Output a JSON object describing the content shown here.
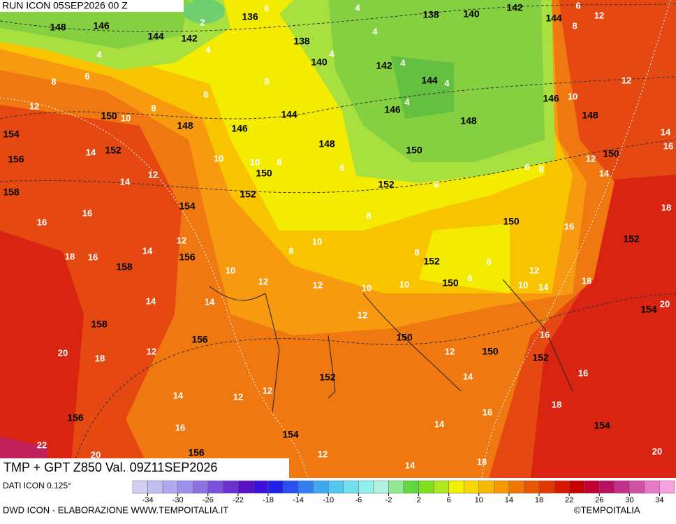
{
  "header": {
    "run": "RUN ICON 05SEP2026 00 Z"
  },
  "title": "TMP + GPT Z850 Val. 09Z11SEP2026",
  "source": "DATI ICON 0.125°",
  "footer": {
    "left": "DWD ICON - ELABORAZIONE WWW.TEMPOITALIA.IT",
    "right": "©TEMPOITALIA"
  },
  "legend": {
    "ticks": [
      -34,
      -30,
      -26,
      -22,
      -18,
      -14,
      -10,
      -6,
      -2,
      2,
      6,
      10,
      14,
      18,
      22,
      26,
      30,
      34
    ],
    "colors": [
      "#d0d0f4",
      "#c0c0f0",
      "#b0a8f0",
      "#9c90ec",
      "#8c70e4",
      "#7c50dc",
      "#6c30d0",
      "#5c10c4",
      "#3c10d8",
      "#2020e8",
      "#2850f0",
      "#3080f0",
      "#40a8f0",
      "#50c8f0",
      "#70e0f0",
      "#90f0f0",
      "#b0f0e0",
      "#90e890",
      "#60d840",
      "#80e020",
      "#b0e820",
      "#f0f000",
      "#f8d800",
      "#f8b800",
      "#f89800",
      "#f07800",
      "#e85800",
      "#e03800",
      "#d81800",
      "#c80000",
      "#c00030",
      "#b81060",
      "#c03088",
      "#d050a8",
      "#e878c8",
      "#f8a0e0"
    ]
  },
  "labels": {
    "geopotential": [
      148,
      146,
      144,
      142,
      136,
      138,
      140,
      138,
      140,
      142,
      144,
      142,
      144,
      146,
      148,
      146,
      148,
      150,
      148,
      146,
      144,
      148,
      150,
      150,
      154,
      152,
      156,
      150,
      152,
      154,
      158,
      152,
      150,
      152,
      156,
      158,
      152,
      150,
      154,
      158,
      156,
      150,
      150,
      152,
      152,
      156,
      154,
      156,
      154
    ],
    "temperature": [
      2,
      6,
      4,
      4,
      4,
      4,
      4,
      6,
      8,
      6,
      8,
      4,
      4,
      4,
      10,
      12,
      12,
      8,
      6,
      12,
      10,
      8,
      14,
      14,
      12,
      10,
      10,
      8,
      6,
      6,
      8,
      12,
      14,
      14,
      16,
      18,
      6,
      8,
      16,
      16,
      12,
      10,
      8,
      16,
      18,
      16,
      14,
      10,
      12,
      12,
      10,
      10,
      8,
      8,
      6,
      12,
      10,
      14,
      18,
      20,
      14,
      14,
      12,
      16,
      20,
      18,
      12,
      12,
      14,
      16,
      12,
      12,
      14,
      18,
      14,
      16,
      22,
      20,
      12,
      14,
      18,
      20,
      16
    ]
  }
}
